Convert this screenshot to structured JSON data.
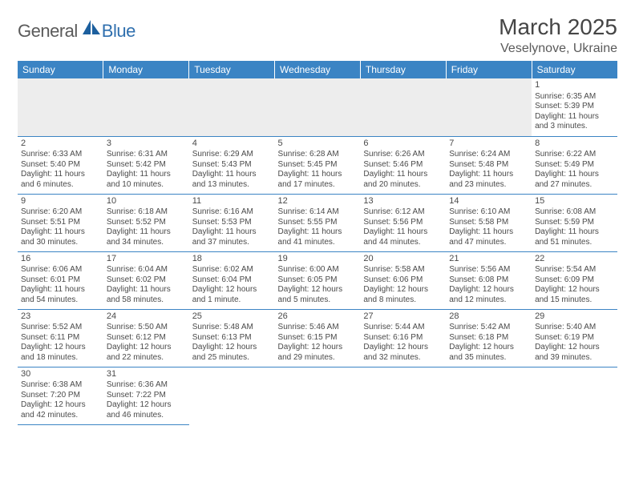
{
  "logo": {
    "text_general": "General",
    "text_blue": "Blue",
    "shape_color": "#1c5f9e"
  },
  "header": {
    "month_title": "March 2025",
    "location": "Veselynove, Ukraine"
  },
  "colors": {
    "header_bg": "#3b84c4",
    "header_text": "#ffffff",
    "border": "#3b84c4",
    "empty_bg": "#ededed",
    "text": "#4a4a4a"
  },
  "weekdays": [
    "Sunday",
    "Monday",
    "Tuesday",
    "Wednesday",
    "Thursday",
    "Friday",
    "Saturday"
  ],
  "leading_empty": 6,
  "days": [
    {
      "n": "1",
      "sr": "6:35 AM",
      "ss": "5:39 PM",
      "d1": "11 hours",
      "d2": "and 3 minutes."
    },
    {
      "n": "2",
      "sr": "6:33 AM",
      "ss": "5:40 PM",
      "d1": "11 hours",
      "d2": "and 6 minutes."
    },
    {
      "n": "3",
      "sr": "6:31 AM",
      "ss": "5:42 PM",
      "d1": "11 hours",
      "d2": "and 10 minutes."
    },
    {
      "n": "4",
      "sr": "6:29 AM",
      "ss": "5:43 PM",
      "d1": "11 hours",
      "d2": "and 13 minutes."
    },
    {
      "n": "5",
      "sr": "6:28 AM",
      "ss": "5:45 PM",
      "d1": "11 hours",
      "d2": "and 17 minutes."
    },
    {
      "n": "6",
      "sr": "6:26 AM",
      "ss": "5:46 PM",
      "d1": "11 hours",
      "d2": "and 20 minutes."
    },
    {
      "n": "7",
      "sr": "6:24 AM",
      "ss": "5:48 PM",
      "d1": "11 hours",
      "d2": "and 23 minutes."
    },
    {
      "n": "8",
      "sr": "6:22 AM",
      "ss": "5:49 PM",
      "d1": "11 hours",
      "d2": "and 27 minutes."
    },
    {
      "n": "9",
      "sr": "6:20 AM",
      "ss": "5:51 PM",
      "d1": "11 hours",
      "d2": "and 30 minutes."
    },
    {
      "n": "10",
      "sr": "6:18 AM",
      "ss": "5:52 PM",
      "d1": "11 hours",
      "d2": "and 34 minutes."
    },
    {
      "n": "11",
      "sr": "6:16 AM",
      "ss": "5:53 PM",
      "d1": "11 hours",
      "d2": "and 37 minutes."
    },
    {
      "n": "12",
      "sr": "6:14 AM",
      "ss": "5:55 PM",
      "d1": "11 hours",
      "d2": "and 41 minutes."
    },
    {
      "n": "13",
      "sr": "6:12 AM",
      "ss": "5:56 PM",
      "d1": "11 hours",
      "d2": "and 44 minutes."
    },
    {
      "n": "14",
      "sr": "6:10 AM",
      "ss": "5:58 PM",
      "d1": "11 hours",
      "d2": "and 47 minutes."
    },
    {
      "n": "15",
      "sr": "6:08 AM",
      "ss": "5:59 PM",
      "d1": "11 hours",
      "d2": "and 51 minutes."
    },
    {
      "n": "16",
      "sr": "6:06 AM",
      "ss": "6:01 PM",
      "d1": "11 hours",
      "d2": "and 54 minutes."
    },
    {
      "n": "17",
      "sr": "6:04 AM",
      "ss": "6:02 PM",
      "d1": "11 hours",
      "d2": "and 58 minutes."
    },
    {
      "n": "18",
      "sr": "6:02 AM",
      "ss": "6:04 PM",
      "d1": "12 hours",
      "d2": "and 1 minute."
    },
    {
      "n": "19",
      "sr": "6:00 AM",
      "ss": "6:05 PM",
      "d1": "12 hours",
      "d2": "and 5 minutes."
    },
    {
      "n": "20",
      "sr": "5:58 AM",
      "ss": "6:06 PM",
      "d1": "12 hours",
      "d2": "and 8 minutes."
    },
    {
      "n": "21",
      "sr": "5:56 AM",
      "ss": "6:08 PM",
      "d1": "12 hours",
      "d2": "and 12 minutes."
    },
    {
      "n": "22",
      "sr": "5:54 AM",
      "ss": "6:09 PM",
      "d1": "12 hours",
      "d2": "and 15 minutes."
    },
    {
      "n": "23",
      "sr": "5:52 AM",
      "ss": "6:11 PM",
      "d1": "12 hours",
      "d2": "and 18 minutes."
    },
    {
      "n": "24",
      "sr": "5:50 AM",
      "ss": "6:12 PM",
      "d1": "12 hours",
      "d2": "and 22 minutes."
    },
    {
      "n": "25",
      "sr": "5:48 AM",
      "ss": "6:13 PM",
      "d1": "12 hours",
      "d2": "and 25 minutes."
    },
    {
      "n": "26",
      "sr": "5:46 AM",
      "ss": "6:15 PM",
      "d1": "12 hours",
      "d2": "and 29 minutes."
    },
    {
      "n": "27",
      "sr": "5:44 AM",
      "ss": "6:16 PM",
      "d1": "12 hours",
      "d2": "and 32 minutes."
    },
    {
      "n": "28",
      "sr": "5:42 AM",
      "ss": "6:18 PM",
      "d1": "12 hours",
      "d2": "and 35 minutes."
    },
    {
      "n": "29",
      "sr": "5:40 AM",
      "ss": "6:19 PM",
      "d1": "12 hours",
      "d2": "and 39 minutes."
    },
    {
      "n": "30",
      "sr": "6:38 AM",
      "ss": "7:20 PM",
      "d1": "12 hours",
      "d2": "and 42 minutes."
    },
    {
      "n": "31",
      "sr": "6:36 AM",
      "ss": "7:22 PM",
      "d1": "12 hours",
      "d2": "and 46 minutes."
    }
  ],
  "labels": {
    "sunrise": "Sunrise:",
    "sunset": "Sunset:",
    "daylight": "Daylight:"
  }
}
